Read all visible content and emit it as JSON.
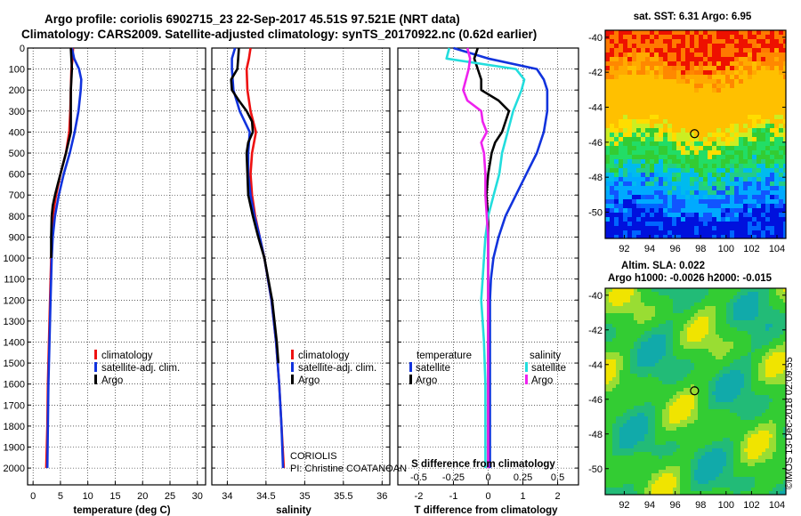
{
  "title": {
    "line1": "Argo profile: coriolis 6902715_23 22-Sep-2017 45.51S 97.521E (NRT data)",
    "line2": "Climatology: CARS2009. Satellite-adjusted climatology: synTS_20170922.nc (0.62d earlier)"
  },
  "map_titles": {
    "sst": "sat. SST: 6.31 Argo: 6.95",
    "sla": "Altim. SLA: 0.022",
    "heights": "Argo h1000: -0.0026 h2000: -0.015"
  },
  "credit": "©IMOS 13-Dec-2018 02:09:55",
  "float_info": {
    "center": "CORIOLIS",
    "pi": "PI: Christine COATANOAN"
  },
  "colors": {
    "climatology": "#ee1111",
    "satellite": "#1133dd",
    "argo": "#000000",
    "sal_satellite": "#22dddd",
    "sal_argo": "#ee22ee"
  },
  "chart_data": [
    {
      "type": "line",
      "name": "temperature",
      "xlabel": "temperature (deg C)",
      "ylabel": "",
      "xlim": [
        -1,
        31.5
      ],
      "ylim": [
        2080,
        0
      ],
      "xticks": [
        "0",
        "5",
        "10",
        "15",
        "20",
        "25",
        "30"
      ],
      "xtick_values": [
        0,
        5,
        10,
        15,
        20,
        25,
        30
      ],
      "yticks": [
        "0",
        "100",
        "200",
        "300",
        "400",
        "500",
        "600",
        "700",
        "800",
        "900",
        "1000",
        "1100",
        "1200",
        "1300",
        "1400",
        "1500",
        "1600",
        "1700",
        "1800",
        "1900",
        "2000"
      ],
      "ytick_values": [
        0,
        100,
        200,
        300,
        400,
        500,
        600,
        700,
        800,
        900,
        1000,
        1100,
        1200,
        1300,
        1400,
        1500,
        1600,
        1700,
        1800,
        1900,
        2000
      ],
      "legend": [
        "climatology",
        "satellite-adj. clim.",
        "Argo"
      ],
      "series": [
        {
          "name": "climatology",
          "color": "#ee1111",
          "depth": [
            0,
            50,
            100,
            200,
            300,
            400,
            500,
            600,
            700,
            800,
            900,
            1000,
            1200,
            1400,
            1600,
            1800,
            2000
          ],
          "values": [
            7.3,
            7.2,
            7.0,
            6.9,
            6.8,
            6.6,
            6.0,
            5.0,
            4.2,
            3.6,
            3.4,
            3.3,
            3.1,
            2.9,
            2.7,
            2.6,
            2.4
          ]
        },
        {
          "name": "satellite-adj. clim.",
          "color": "#1133dd",
          "depth": [
            0,
            50,
            100,
            150,
            200,
            300,
            400,
            500,
            600,
            700,
            800,
            900,
            1000,
            1200,
            1400,
            1600,
            1800,
            2000
          ],
          "values": [
            7.1,
            7.5,
            8.4,
            8.8,
            8.7,
            8.3,
            7.6,
            6.7,
            5.6,
            4.7,
            4.0,
            3.6,
            3.4,
            3.2,
            3.0,
            2.8,
            2.7,
            2.6
          ]
        },
        {
          "name": "Argo",
          "color": "#000000",
          "depth": [
            0,
            50,
            100,
            200,
            300,
            400,
            500,
            550,
            600,
            650,
            700,
            750,
            800,
            900,
            1000
          ],
          "values": [
            6.9,
            7.0,
            7.1,
            6.9,
            6.9,
            6.9,
            6.0,
            5.5,
            5.0,
            4.5,
            4.0,
            3.6,
            3.4,
            3.3,
            3.3
          ]
        }
      ]
    },
    {
      "type": "line",
      "name": "salinity",
      "xlabel": "salinity",
      "ylabel": "",
      "xlim": [
        33.8,
        36.1
      ],
      "ylim": [
        2080,
        0
      ],
      "xticks": [
        "34",
        "34.5",
        "35",
        "35.5",
        "36"
      ],
      "xtick_values": [
        34,
        34.5,
        35,
        35.5,
        36
      ],
      "legend": [
        "climatology",
        "satellite-adj. clim.",
        "Argo"
      ],
      "series": [
        {
          "name": "climatology",
          "color": "#ee1111",
          "depth": [
            0,
            50,
            100,
            200,
            300,
            400,
            500,
            600,
            700,
            800,
            900,
            1000,
            1200,
            1400,
            1600,
            1800,
            2000
          ],
          "values": [
            34.3,
            34.28,
            34.25,
            34.26,
            34.3,
            34.37,
            34.32,
            34.3,
            34.32,
            34.36,
            34.42,
            34.48,
            34.57,
            34.63,
            34.67,
            34.7,
            34.73
          ]
        },
        {
          "name": "satellite-adj. clim.",
          "color": "#1133dd",
          "depth": [
            0,
            50,
            100,
            200,
            300,
            400,
            500,
            600,
            700,
            800,
            900,
            1000,
            1200,
            1400,
            1600,
            1800,
            2000
          ],
          "values": [
            34.1,
            34.06,
            34.06,
            34.08,
            34.16,
            34.29,
            34.27,
            34.27,
            34.3,
            34.35,
            34.42,
            34.48,
            34.57,
            34.63,
            34.67,
            34.7,
            34.72
          ]
        },
        {
          "name": "Argo",
          "color": "#000000",
          "depth": [
            0,
            50,
            100,
            150,
            200,
            250,
            300,
            350,
            400,
            450,
            500,
            600,
            700,
            800,
            900,
            1000,
            1200,
            1400,
            1500
          ],
          "values": [
            34.15,
            34.14,
            34.13,
            34.05,
            34.06,
            34.15,
            34.25,
            34.32,
            34.33,
            34.27,
            34.25,
            34.26,
            34.27,
            34.33,
            34.4,
            34.48,
            34.58,
            34.64,
            34.66
          ]
        }
      ]
    },
    {
      "type": "line",
      "name": "differences from climatology",
      "xlabel": "T difference from climatology",
      "x2label": "S difference from climatology",
      "xlim": [
        -2.6,
        2.6
      ],
      "ylim": [
        2080,
        0
      ],
      "xticks": [
        "-2",
        "-1",
        "0",
        "1",
        "2"
      ],
      "xtick_values": [
        -2,
        -1,
        0,
        1,
        2
      ],
      "x2ticks": [
        "-0.5",
        "-0.25",
        "0",
        "0.25",
        "0.5"
      ],
      "x2tick_values": [
        -0.5,
        -0.25,
        0,
        0.25,
        0.5
      ],
      "legend_titles": [
        "temperature",
        "salinity"
      ],
      "legend_left": [
        "satellite",
        "Argo"
      ],
      "legend_right": [
        "satellite",
        "Argo"
      ],
      "series": [
        {
          "name": "T satellite",
          "color": "#1133dd",
          "depth": [
            0,
            50,
            100,
            150,
            200,
            300,
            400,
            500,
            600,
            700,
            800,
            900,
            1000,
            1100,
            1200,
            1400,
            1600,
            1800,
            2000
          ],
          "values": [
            -1.0,
            0.0,
            1.4,
            1.6,
            1.7,
            1.7,
            1.6,
            1.4,
            1.1,
            0.8,
            0.5,
            0.3,
            0.15,
            0.08,
            0.05,
            0.05,
            0.05,
            0.05,
            0.05
          ]
        },
        {
          "name": "T Argo",
          "color": "#000000",
          "depth": [
            0,
            50,
            100,
            150,
            200,
            250,
            300,
            350,
            400,
            450,
            500,
            600,
            700,
            800,
            900,
            1000,
            1100,
            1200,
            1400,
            1600,
            1800,
            2000
          ],
          "values": [
            -0.3,
            -0.4,
            -0.3,
            -0.2,
            -0.2,
            0.3,
            0.6,
            0.5,
            0.4,
            0.2,
            0.1,
            0.0,
            -0.05,
            0.0,
            0.0,
            0.0,
            0.0,
            0.0,
            0.0,
            0.0,
            0.0,
            0.0
          ]
        },
        {
          "name": "S satellite",
          "color": "#22dddd",
          "depth": [
            0,
            50,
            100,
            150,
            200,
            300,
            400,
            500,
            600,
            700,
            800,
            900,
            1000,
            1100,
            1200,
            1300,
            1400,
            1600,
            1800,
            2000
          ],
          "values": [
            -0.28,
            -0.3,
            0.2,
            0.26,
            0.24,
            0.18,
            0.14,
            0.1,
            0.08,
            0.04,
            0.0,
            -0.02,
            -0.03,
            -0.04,
            -0.05,
            -0.04,
            -0.03,
            -0.02,
            -0.02,
            -0.02
          ]
        },
        {
          "name": "S Argo",
          "color": "#ee22ee",
          "depth": [
            0,
            50,
            100,
            150,
            200,
            250,
            300,
            350,
            400,
            450,
            500,
            600,
            700,
            800,
            900,
            1000,
            1200,
            1400,
            1600,
            1800,
            2000
          ],
          "values": [
            -0.15,
            -0.13,
            -0.14,
            -0.16,
            -0.18,
            -0.15,
            -0.05,
            -0.04,
            -0.01,
            -0.05,
            -0.03,
            -0.02,
            -0.02,
            -0.01,
            0.0,
            0.0,
            0.0,
            0.0,
            0.0,
            0.0,
            0.0
          ]
        }
      ]
    },
    {
      "type": "heatmap",
      "name": "satellite SST map",
      "title": "sat. SST: 6.31 Argo: 6.95",
      "xticks": [
        "92",
        "94",
        "96",
        "98",
        "100",
        "102",
        "104"
      ],
      "xtick_values": [
        92,
        94,
        96,
        98,
        100,
        102,
        104
      ],
      "yticks": [
        "-40",
        "-42",
        "-44",
        "-46",
        "-48",
        "-50"
      ],
      "ytick_values": [
        -40,
        -42,
        -44,
        -46,
        -48,
        -50
      ],
      "xlim": [
        90.5,
        104.7
      ],
      "ylim": [
        -51.5,
        -39.6
      ],
      "marker": [
        97.52,
        -45.51
      ]
    },
    {
      "type": "heatmap",
      "name": "altimetry SLA map",
      "title": "Altim. SLA: 0.022",
      "xticks": [
        "92",
        "94",
        "96",
        "98",
        "100",
        "102",
        "104"
      ],
      "xtick_values": [
        92,
        94,
        96,
        98,
        100,
        102,
        104
      ],
      "yticks": [
        "-40",
        "-42",
        "-44",
        "-46",
        "-48",
        "-50"
      ],
      "ytick_values": [
        -40,
        -42,
        -44,
        -46,
        -48,
        -50
      ],
      "xlim": [
        90.5,
        104.7
      ],
      "ylim": [
        -51.5,
        -39.6
      ],
      "marker": [
        97.52,
        -45.51
      ]
    }
  ]
}
